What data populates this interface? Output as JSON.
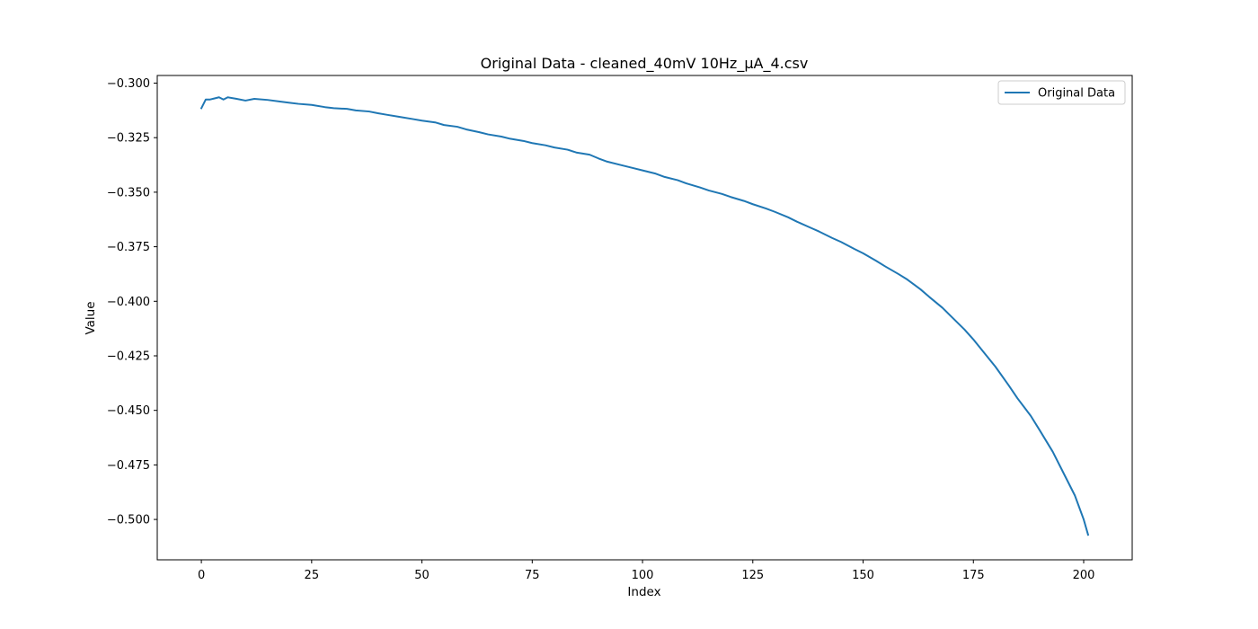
{
  "chart_data": {
    "type": "line",
    "title": "Original Data - cleaned_40mV 10Hz_µA_4.csv",
    "xlabel": "Index",
    "ylabel": "Value",
    "xlim": [
      -10,
      211
    ],
    "ylim": [
      -0.5185,
      -0.2965
    ],
    "xticks": [
      0,
      25,
      50,
      75,
      100,
      125,
      150,
      175,
      200
    ],
    "yticks": [
      -0.3,
      -0.325,
      -0.35,
      -0.375,
      -0.4,
      -0.425,
      -0.45,
      -0.475,
      -0.5
    ],
    "ytick_labels": [
      "−0.300",
      "−0.325",
      "−0.350",
      "−0.375",
      "−0.400",
      "−0.425",
      "−0.450",
      "−0.475",
      "−0.500"
    ],
    "xtick_labels": [
      "0",
      "25",
      "50",
      "75",
      "100",
      "125",
      "150",
      "175",
      "200"
    ],
    "grid": false,
    "legend_position": "upper-right",
    "series": [
      {
        "name": "Original Data",
        "color": "#1f77b4",
        "x": [
          0,
          1,
          2,
          3,
          4,
          5,
          6,
          8,
          10,
          12,
          15,
          18,
          20,
          22,
          25,
          28,
          30,
          33,
          35,
          38,
          40,
          42,
          45,
          48,
          50,
          53,
          55,
          58,
          60,
          63,
          65,
          68,
          70,
          73,
          75,
          78,
          80,
          83,
          85,
          88,
          90,
          92,
          95,
          98,
          100,
          103,
          105,
          108,
          110,
          113,
          115,
          118,
          120,
          123,
          125,
          128,
          130,
          133,
          135,
          138,
          140,
          143,
          145,
          148,
          150,
          153,
          155,
          158,
          160,
          163,
          165,
          168,
          170,
          173,
          175,
          178,
          180,
          183,
          185,
          188,
          190,
          193,
          195,
          198,
          200,
          201
        ],
        "y": [
          -0.3115,
          -0.3075,
          -0.3075,
          -0.307,
          -0.3065,
          -0.3075,
          -0.3065,
          -0.3072,
          -0.308,
          -0.3072,
          -0.3077,
          -0.3085,
          -0.309,
          -0.3095,
          -0.31,
          -0.311,
          -0.3115,
          -0.3118,
          -0.3125,
          -0.313,
          -0.3138,
          -0.3145,
          -0.3155,
          -0.3165,
          -0.3172,
          -0.318,
          -0.3192,
          -0.32,
          -0.3212,
          -0.3225,
          -0.3235,
          -0.3245,
          -0.3255,
          -0.3265,
          -0.3275,
          -0.3285,
          -0.3295,
          -0.3305,
          -0.3318,
          -0.3328,
          -0.3345,
          -0.336,
          -0.3375,
          -0.339,
          -0.34,
          -0.3415,
          -0.343,
          -0.3445,
          -0.346,
          -0.3478,
          -0.3492,
          -0.3508,
          -0.3522,
          -0.354,
          -0.3555,
          -0.3575,
          -0.359,
          -0.3615,
          -0.3635,
          -0.3662,
          -0.368,
          -0.371,
          -0.3728,
          -0.376,
          -0.378,
          -0.3815,
          -0.384,
          -0.3875,
          -0.39,
          -0.3945,
          -0.398,
          -0.403,
          -0.407,
          -0.413,
          -0.4175,
          -0.425,
          -0.43,
          -0.4385,
          -0.4445,
          -0.4525,
          -0.459,
          -0.469,
          -0.477,
          -0.489,
          -0.5,
          -0.507
        ]
      }
    ]
  }
}
